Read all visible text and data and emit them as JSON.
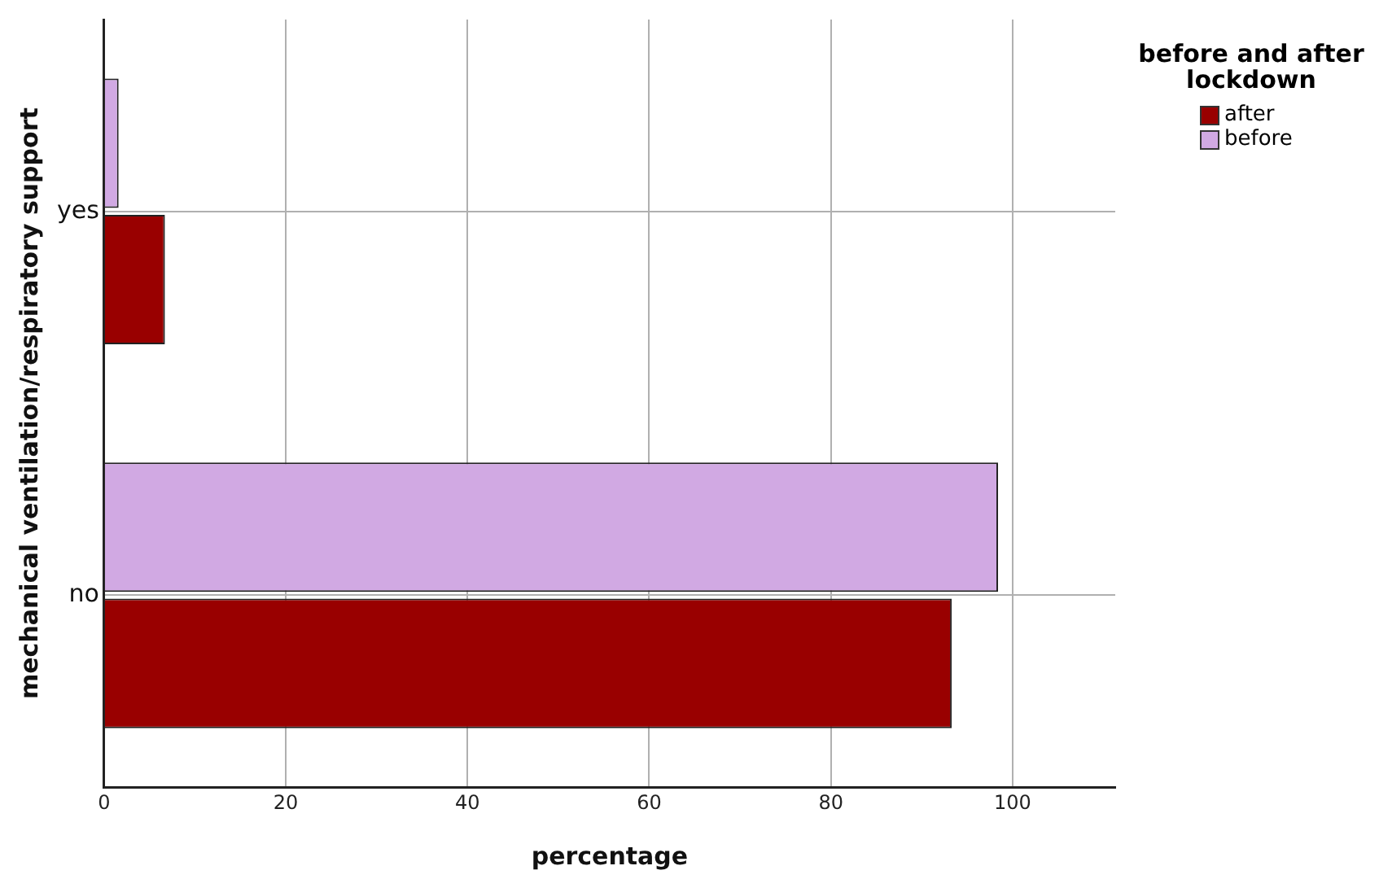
{
  "chart_data": {
    "type": "bar",
    "orientation": "horizontal",
    "xlabel": "percentage",
    "ylabel": "mechanical ventilation/respiratory support",
    "legend_title": "before and after lockdown",
    "categories": [
      "yes",
      "no"
    ],
    "series": [
      {
        "name": "after",
        "color": "#990000",
        "values": [
          6.7,
          93.3
        ]
      },
      {
        "name": "before",
        "color": "#d1a9e3",
        "values": [
          1.6,
          98.4
        ]
      }
    ],
    "xlim": [
      0,
      111.3
    ],
    "xticks": [
      0,
      20,
      40,
      60,
      80,
      100
    ],
    "grid": true,
    "legend": "top right"
  }
}
